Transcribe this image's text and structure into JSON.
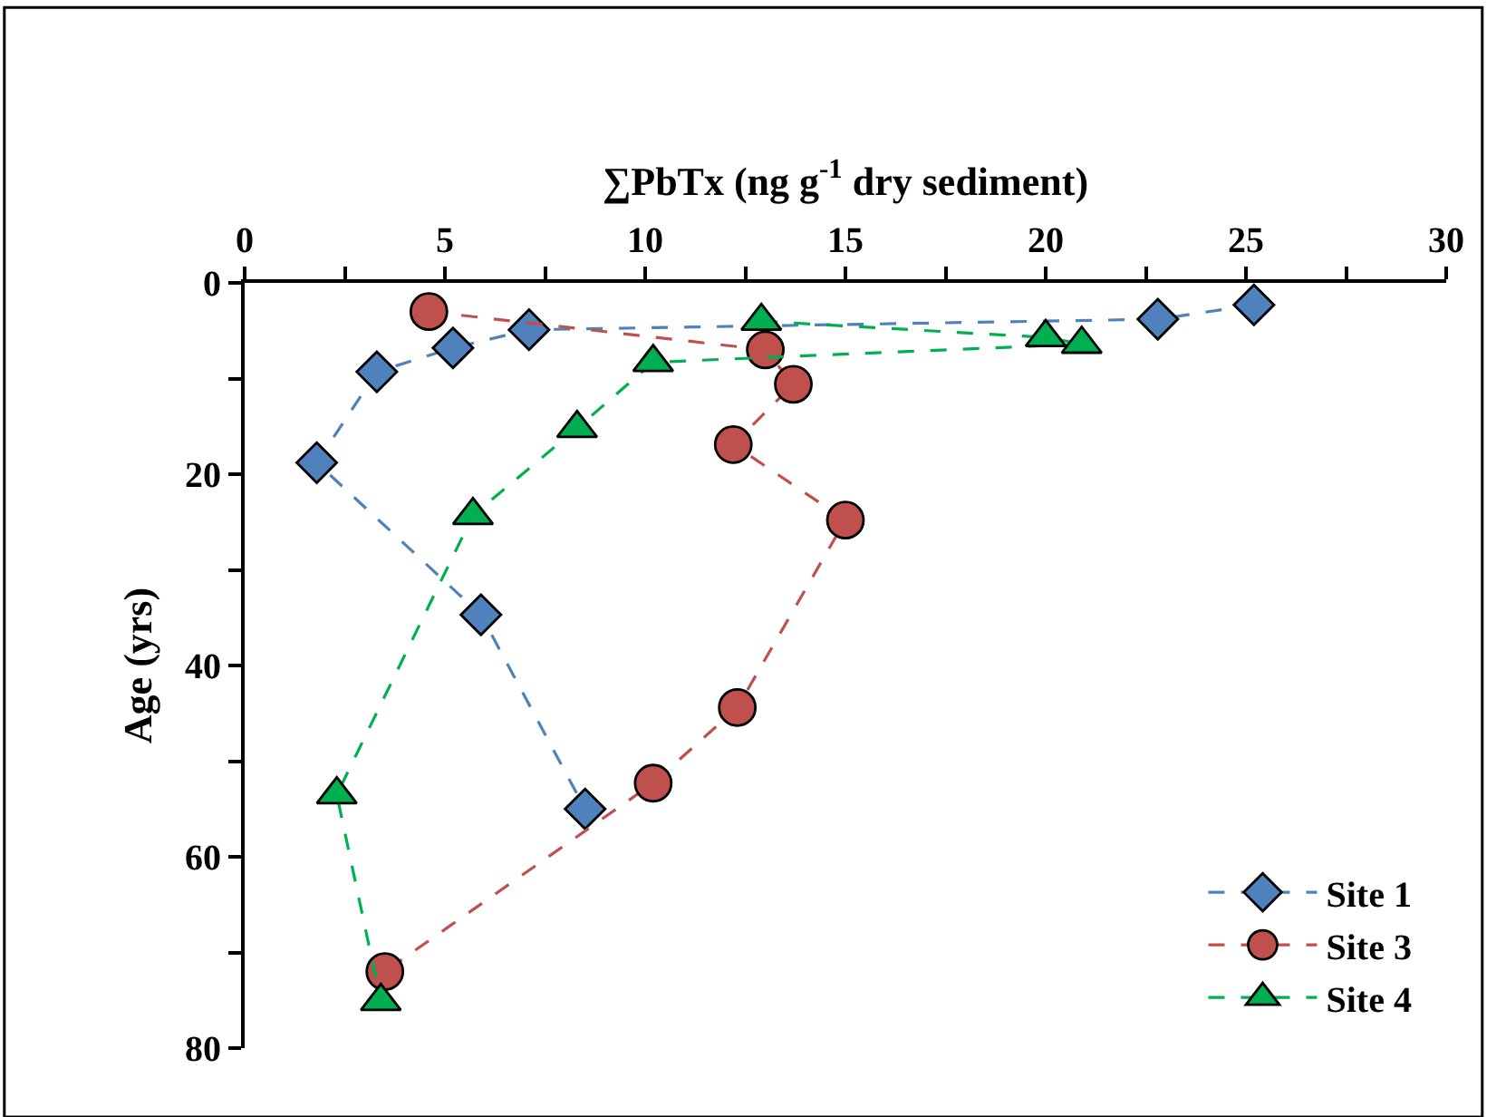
{
  "chart_data": {
    "type": "line",
    "xlabel": "∑PbTx (ng g$^{-1}$ dry sediment)",
    "ylabel": "Age (yrs)",
    "xlim": [
      0,
      30
    ],
    "xticks": [
      0,
      {
        "value": 2.5,
        "label": null
      },
      5,
      {
        "value": 7.5,
        "label": null
      },
      10,
      {
        "value": 12.5,
        "label": null
      },
      15,
      {
        "value": 17.5,
        "label": null
      },
      20,
      {
        "value": 22.5,
        "label": null
      },
      25,
      {
        "value": 27.5,
        "label": null
      },
      30
    ],
    "ylim": [
      80,
      0
    ],
    "yticks": [
      0,
      {
        "value": 10,
        "label": null
      },
      20,
      {
        "value": 30,
        "label": null
      },
      40,
      {
        "value": 50,
        "label": null
      },
      60,
      {
        "value": 70,
        "label": null
      },
      80
    ],
    "grid": false,
    "legend": "bottom right",
    "line_style": "dashed",
    "series": [
      {
        "name": "Site 1",
        "color": "#4f81bd",
        "marker": "diamond",
        "x": [
          25.2,
          22.8,
          7.1,
          5.2,
          3.3,
          1.8,
          5.9,
          8.5
        ],
        "values": [
          2.3,
          3.8,
          4.9,
          6.8,
          9.3,
          18.8,
          34.7,
          55
        ]
      },
      {
        "name": "Site 3",
        "color": "#c0504d",
        "marker": "circle",
        "x": [
          4.6,
          13.0,
          13.7,
          12.2,
          15.0,
          12.3,
          10.2,
          3.5
        ],
        "values": [
          3.0,
          7.0,
          10.6,
          16.9,
          24.8,
          44.4,
          52.3,
          72.0
        ]
      },
      {
        "name": "Site 4",
        "color": "#00b050",
        "marker": "triangle",
        "x": [
          12.9,
          20.0,
          20.9,
          10.2,
          8.3,
          5.7,
          2.3,
          3.4
        ],
        "values": [
          4.0,
          5.7,
          6.4,
          8.3,
          15.2,
          24.3,
          53.5,
          75.1
        ]
      }
    ]
  }
}
